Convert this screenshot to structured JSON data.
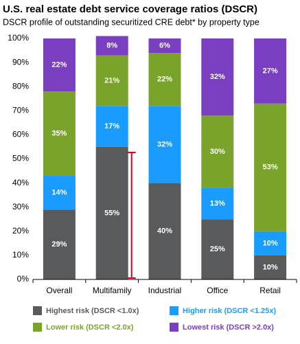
{
  "chart_data": {
    "type": "stacked_bar",
    "title": "U.S. real estate debt service coverage ratios (DSCR)",
    "subtitle": "DSCR profile of outstanding securitized CRE debt* by property type",
    "categories": [
      "Overall",
      "Multifamily",
      "Industrial",
      "Office",
      "Retail"
    ],
    "series": [
      {
        "name": "Highest risk (DSCR <1.0x)",
        "color": "#595a5c",
        "values": [
          29,
          55,
          40,
          25,
          10
        ],
        "value_labels": [
          "29%",
          "55%",
          "40%",
          "25%",
          "10%"
        ]
      },
      {
        "name": "Higher risk (DSCR <1.25x)",
        "color": "#1a9cff",
        "values": [
          14,
          17,
          32,
          13,
          10
        ],
        "value_labels": [
          "14%",
          "17%",
          "32%",
          "13%",
          "10%"
        ]
      },
      {
        "name": "Lower risk (DSCR <2.0x)",
        "color": "#7aa32b",
        "values": [
          35,
          21,
          22,
          30,
          53
        ],
        "value_labels": [
          "35%",
          "21%",
          "22%",
          "30%",
          "53%"
        ]
      },
      {
        "name": "Lowest risk (DSCR >2.0x)",
        "color": "#7a3fc1",
        "values": [
          22,
          8,
          6,
          32,
          27
        ],
        "value_labels": [
          "22%",
          "8%",
          "6%",
          "32%",
          "27%"
        ]
      }
    ],
    "ylim": [
      0,
      100
    ],
    "yticks": [
      {
        "value": 0,
        "label": "0%"
      },
      {
        "value": 10,
        "label": "10%"
      },
      {
        "value": 20,
        "label": "20%"
      },
      {
        "value": 30,
        "label": "30%"
      },
      {
        "value": 40,
        "label": "40%"
      },
      {
        "value": 50,
        "label": "50%"
      },
      {
        "value": 60,
        "label": "60%"
      },
      {
        "value": 70,
        "label": "70%"
      },
      {
        "value": 80,
        "label": "80%"
      },
      {
        "value": 90,
        "label": "90%"
      },
      {
        "value": 100,
        "label": "100%"
      }
    ],
    "grid": false
  }
}
